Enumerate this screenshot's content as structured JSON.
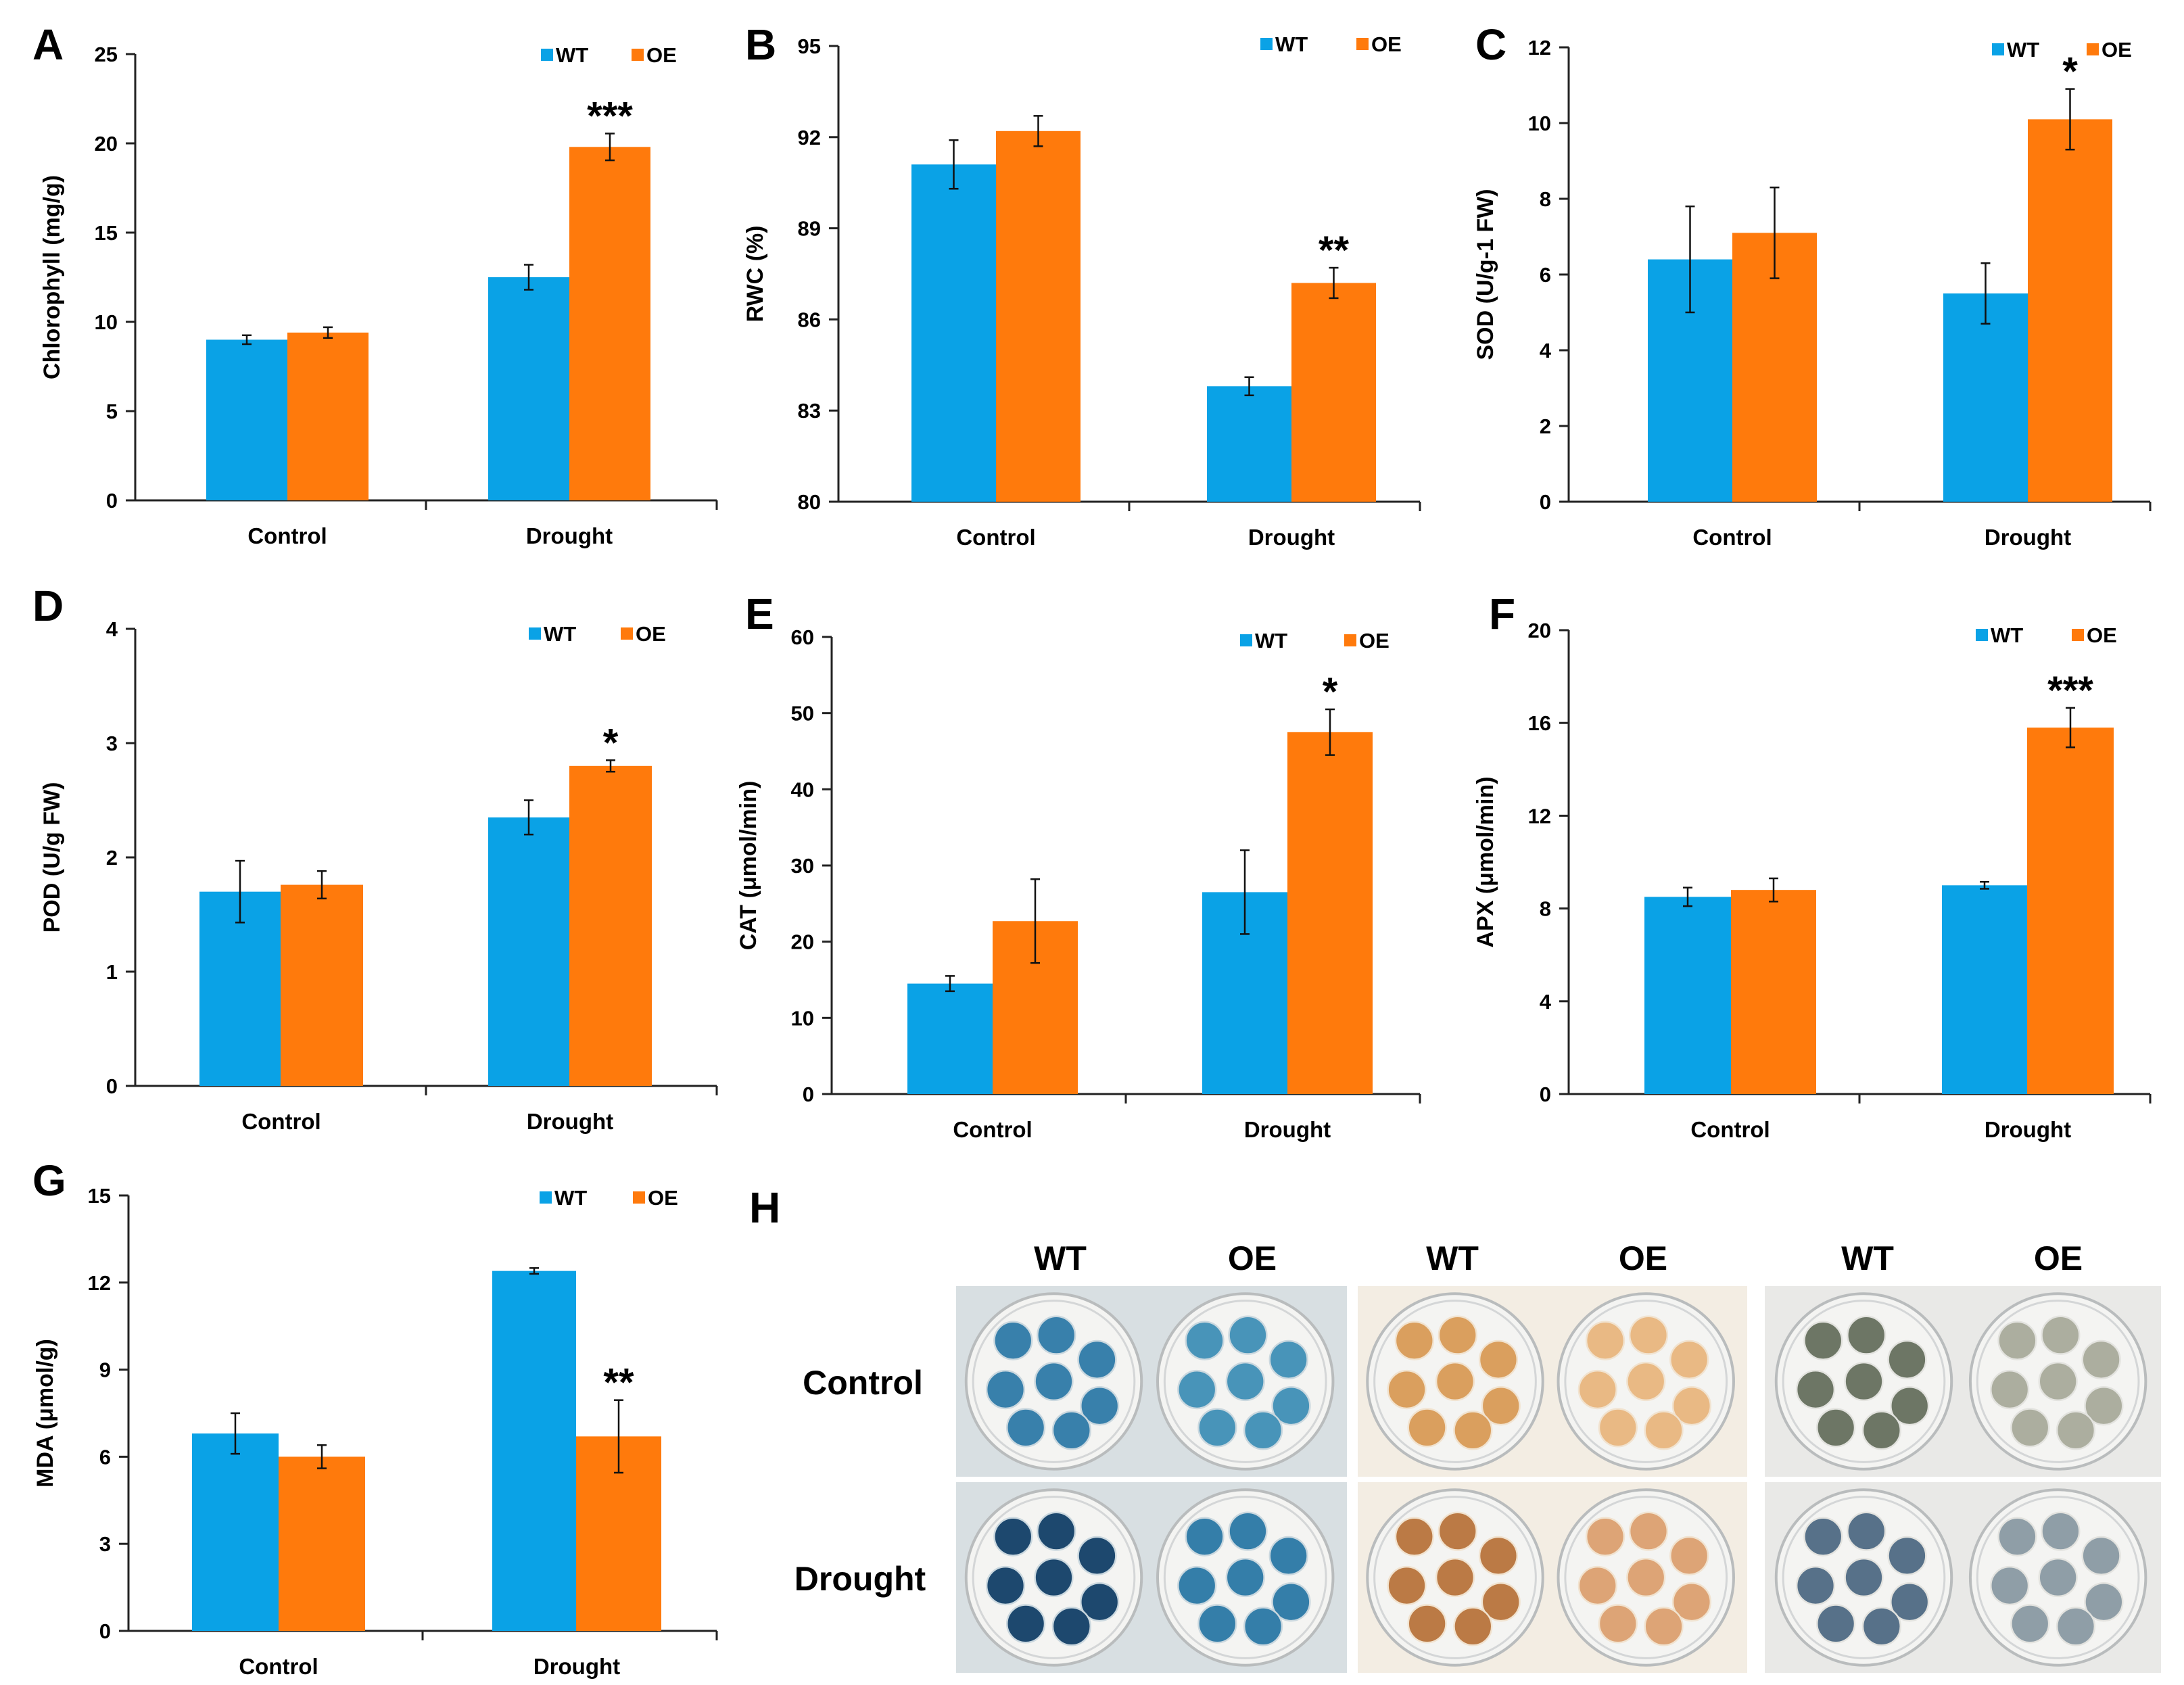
{
  "legend": {
    "wt": "WT",
    "oe": "OE"
  },
  "colors": {
    "wt": "#0aa2e6",
    "oe": "#ff7a0c",
    "axis": "#222222",
    "text": "#000000"
  },
  "chart_data": [
    {
      "panel": "A",
      "type": "bar",
      "categories": [
        "Control",
        "Drought"
      ],
      "series": [
        {
          "name": "WT",
          "values": [
            9.0,
            12.5
          ],
          "errors": [
            0.25,
            0.7
          ]
        },
        {
          "name": "OE",
          "values": [
            9.4,
            19.8
          ],
          "errors": [
            0.3,
            0.75
          ]
        }
      ],
      "ylabel": "Chlorophyll (mg/g)",
      "ylim": [
        0,
        25
      ],
      "yticks": [
        0,
        5,
        10,
        15,
        20,
        25
      ],
      "annotations": [
        {
          "category": 1,
          "series": 1,
          "text": "***"
        }
      ],
      "legend": "top-right"
    },
    {
      "panel": "B",
      "type": "bar",
      "categories": [
        "Control",
        "Drought"
      ],
      "series": [
        {
          "name": "WT",
          "values": [
            91.1,
            83.8
          ],
          "errors": [
            0.8,
            0.3
          ]
        },
        {
          "name": "OE",
          "values": [
            92.2,
            87.2
          ],
          "errors": [
            0.5,
            0.5
          ]
        }
      ],
      "ylabel": "RWC (%)",
      "ylim": [
        80,
        95
      ],
      "yticks": [
        80,
        83,
        86,
        89,
        92,
        95
      ],
      "annotations": [
        {
          "category": 1,
          "series": 1,
          "text": "**"
        }
      ],
      "legend": "top-right"
    },
    {
      "panel": "C",
      "type": "bar",
      "categories": [
        "Control",
        "Drought"
      ],
      "series": [
        {
          "name": "WT",
          "values": [
            6.4,
            5.5
          ],
          "errors": [
            1.4,
            0.8
          ]
        },
        {
          "name": "OE",
          "values": [
            7.1,
            10.1
          ],
          "errors": [
            1.2,
            0.8
          ]
        }
      ],
      "ylabel": "SOD (U/g-1 FW)",
      "ylim": [
        0,
        12
      ],
      "yticks": [
        0,
        2,
        4,
        6,
        8,
        10,
        12
      ],
      "annotations": [
        {
          "category": 1,
          "series": 1,
          "text": "*"
        }
      ],
      "legend": "top-right"
    },
    {
      "panel": "D",
      "type": "bar",
      "categories": [
        "Control",
        "Drought"
      ],
      "series": [
        {
          "name": "WT",
          "values": [
            1.7,
            2.35
          ],
          "errors": [
            0.27,
            0.15
          ]
        },
        {
          "name": "OE",
          "values": [
            1.76,
            2.8
          ],
          "errors": [
            0.12,
            0.05
          ]
        }
      ],
      "ylabel": "POD (U/g FW)",
      "ylim": [
        0,
        4
      ],
      "yticks": [
        0,
        1,
        2,
        3,
        4
      ],
      "annotations": [
        {
          "category": 1,
          "series": 1,
          "text": "*"
        }
      ],
      "legend": "top-right"
    },
    {
      "panel": "E",
      "type": "bar",
      "categories": [
        "Control",
        "Drought"
      ],
      "series": [
        {
          "name": "WT",
          "values": [
            14.5,
            26.5
          ],
          "errors": [
            1.0,
            5.5
          ]
        },
        {
          "name": "OE",
          "values": [
            22.7,
            47.5
          ],
          "errors": [
            5.5,
            3.0
          ]
        }
      ],
      "ylabel": "CAT (μmol/min)",
      "ylim": [
        0,
        60
      ],
      "yticks": [
        0,
        10,
        20,
        30,
        40,
        50,
        60
      ],
      "annotations": [
        {
          "category": 1,
          "series": 1,
          "text": "*"
        }
      ],
      "legend": "top-right"
    },
    {
      "panel": "F",
      "type": "bar",
      "categories": [
        "Control",
        "Drought"
      ],
      "series": [
        {
          "name": "WT",
          "values": [
            8.5,
            9.0
          ],
          "errors": [
            0.4,
            0.15
          ]
        },
        {
          "name": "OE",
          "values": [
            8.8,
            15.8
          ],
          "errors": [
            0.5,
            0.85
          ]
        }
      ],
      "ylabel": "APX (μmol/min)",
      "ylim": [
        0,
        20
      ],
      "yticks": [
        0,
        4,
        8,
        12,
        16,
        20
      ],
      "annotations": [
        {
          "category": 1,
          "series": 1,
          "text": "***"
        }
      ],
      "legend": "top-right"
    },
    {
      "panel": "G",
      "type": "bar",
      "categories": [
        "Control",
        "Drought"
      ],
      "series": [
        {
          "name": "WT",
          "values": [
            6.8,
            12.4
          ],
          "errors": [
            0.7,
            0.1
          ]
        },
        {
          "name": "OE",
          "values": [
            6.0,
            6.7
          ],
          "errors": [
            0.4,
            1.25
          ]
        }
      ],
      "ylabel": "MDA (μmol/g)",
      "ylim": [
        0,
        15
      ],
      "yticks": [
        0,
        3,
        6,
        9,
        12,
        15
      ],
      "annotations": [
        {
          "category": 1,
          "series": 1,
          "text": "**"
        }
      ],
      "legend": "top-right"
    }
  ],
  "staining": {
    "panel": "H",
    "column_labels": [
      "WT",
      "OE",
      "WT",
      "OE",
      "WT",
      "OE"
    ],
    "row_labels": [
      "Control",
      "Drought"
    ],
    "stain_colors": {
      "blue": {
        "control_wt": "#2e7aa8",
        "control_oe": "#3f8fb6",
        "drought_wt": "#123f67",
        "drought_oe": "#2a78a6",
        "light": "#c9d7de",
        "bg": "#d8dfe2"
      },
      "brown": {
        "control_wt": "#d99b57",
        "control_oe": "#e9b67f",
        "drought_wt": "#b8743c",
        "drought_oe": "#dca070",
        "light": "#f1e3cf",
        "bg": "#f3ede3"
      },
      "gray": {
        "control_wt": "#66705e",
        "control_oe": "#a9ab9b",
        "drought_wt": "#4f6b84",
        "drought_oe": "#8a9aa4",
        "light": "#e3e3df",
        "bg": "#e9e9e7"
      }
    }
  }
}
